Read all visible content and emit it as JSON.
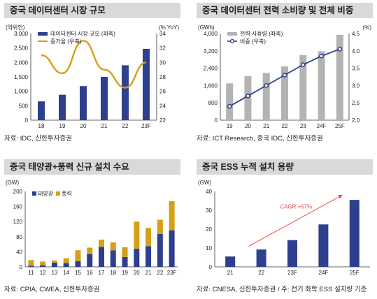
{
  "panels": [
    {
      "title": "중국 데이터센터 시장 규모",
      "source": "자료: IDC, 신한투자증권"
    },
    {
      "title": "중국 데이터센터 전력 소비량 및 전체 비중",
      "source": "자료: ICT Research, 중국 IDC, 신한투자증권"
    },
    {
      "title": "중국 태양광+풍력 신규 설치 수요",
      "source": "자료: CPIA, CWEA, 신한투자증권"
    },
    {
      "title": "중국 ESS 누적 설치 용량",
      "source": "자료: CNESA, 신한투자증권 / 주: 전기 화학 ESS 설치량 기준"
    }
  ],
  "chart_data": [
    {
      "type": "bar",
      "categories": [
        "18",
        "19",
        "20",
        "21",
        "22",
        "23F"
      ],
      "series": [
        {
          "name": "데이터센터 시장 규모 (좌축)",
          "type": "bar",
          "values": [
            650,
            880,
            1180,
            1500,
            1900,
            2470
          ],
          "color": "#2e3f8f"
        },
        {
          "name": "증가율 (우축)",
          "type": "line",
          "values": [
            31.0,
            28.5,
            33.0,
            29.0,
            26.5,
            30.0
          ],
          "color": "#d4a017"
        }
      ],
      "ylabel_left": "(억위안)",
      "ylabel_right": "(% YoY)",
      "ylim_left": [
        0,
        3000
      ],
      "yticks_left": [
        "0",
        "500",
        "1,000",
        "1,500",
        "2,000",
        "2,500",
        "3,000"
      ],
      "ylim_right": [
        22,
        34
      ],
      "yticks_right": [
        "22",
        "24",
        "26",
        "28",
        "30",
        "32",
        "34"
      ],
      "legend_position": "top-left"
    },
    {
      "type": "bar",
      "categories": [
        "19",
        "20",
        "21",
        "22",
        "23",
        "24F",
        "25F"
      ],
      "series": [
        {
          "name": "전력 사용량 (좌축)",
          "type": "bar",
          "values": [
            1700,
            2040,
            2180,
            2480,
            3000,
            3180,
            3940
          ],
          "color": "#b3b3b3"
        },
        {
          "name": "비중 (우축)",
          "type": "line",
          "values": [
            2.4,
            2.7,
            3.0,
            3.3,
            3.6,
            3.85,
            4.05
          ],
          "color": "#2e3f8f"
        }
      ],
      "ylabel_left": "(GWh)",
      "ylabel_right": "(%)",
      "ylim_left": [
        0,
        4000
      ],
      "yticks_left": [
        "0",
        "800",
        "1,600",
        "2,400",
        "3,200",
        "4,000"
      ],
      "ylim_right": [
        2.0,
        4.5
      ],
      "yticks_right": [
        "2.0",
        "2.5",
        "3.0",
        "3.5",
        "4.0",
        "4.5"
      ],
      "legend_position": "top-left"
    },
    {
      "type": "bar",
      "stacked": true,
      "categories": [
        "11",
        "12",
        "13",
        "14",
        "15",
        "16",
        "17",
        "18",
        "19",
        "20",
        "21",
        "22",
        "23F"
      ],
      "series": [
        {
          "name": "태양광",
          "values": [
            3,
            4,
            11,
            10,
            15,
            34,
            53,
            44,
            26,
            48,
            55,
            87,
            97
          ],
          "color": "#2e3f8f"
        },
        {
          "name": "풍력",
          "values": [
            15,
            10,
            6,
            13,
            29,
            17,
            19,
            21,
            26,
            72,
            48,
            38,
            77
          ],
          "color": "#d4a017"
        }
      ],
      "ylabel": "(GW)",
      "ylim": [
        0,
        200
      ],
      "yticks": [
        "0",
        "40",
        "80",
        "120",
        "160",
        "200"
      ],
      "legend_position": "top-left"
    },
    {
      "type": "bar",
      "categories": [
        "21",
        "22",
        "23F",
        "24F",
        "25F"
      ],
      "values": [
        5.5,
        9.2,
        14.2,
        22.5,
        35.5
      ],
      "color": "#2e3f8f",
      "ylabel": "(GW)",
      "ylim": [
        0,
        40
      ],
      "yticks": [
        "0",
        "10",
        "20",
        "30",
        "40"
      ],
      "annotation": "CAGR +57%",
      "annotation_color": "#e84a4a"
    }
  ]
}
